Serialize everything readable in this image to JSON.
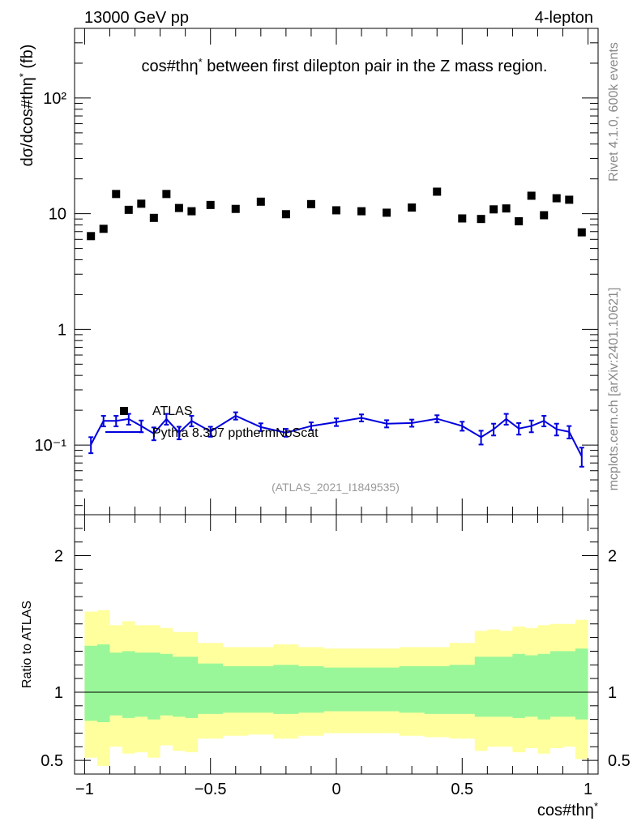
{
  "header": {
    "left_label": "13000 GeV pp",
    "right_label": "4-lepton",
    "plot_title": "cos#thη* between first dilepton pair in the Z mass region.",
    "analysis_id": "(ATLAS_2021_I1849535)"
  },
  "side_labels": {
    "rivet": "Rivet 4.1.0,  600k events",
    "mcplots": "mcplots.cern.ch [arXiv:2401.10621]"
  },
  "chart_data": [
    {
      "type": "scatter",
      "panel": "main",
      "ylabel": "dσ/dcos#thη* (fb)",
      "yscale": "log",
      "ylim": [
        0.025,
        400
      ],
      "xlim": [
        -1.04,
        1.04
      ],
      "ytick_labels": [
        "10⁻¹",
        "1",
        "10",
        "10²"
      ],
      "ytick_values": [
        0.1,
        1,
        10,
        100
      ],
      "legend": {
        "position": "top-left-of-lower-half",
        "entries": [
          "ATLAS",
          "Pythia 8.307 ppthermNoScat"
        ]
      },
      "series": [
        {
          "name": "ATLAS",
          "style": "markers",
          "color": "#000000",
          "x": [
            -0.975,
            -0.925,
            -0.875,
            -0.825,
            -0.775,
            -0.725,
            -0.675,
            -0.625,
            -0.575,
            -0.5,
            -0.4,
            -0.3,
            -0.2,
            -0.1,
            0.0,
            0.1,
            0.2,
            0.3,
            0.4,
            0.5,
            0.575,
            0.625,
            0.675,
            0.725,
            0.775,
            0.825,
            0.875,
            0.925,
            0.975
          ],
          "y": [
            6.4,
            7.4,
            14.8,
            10.8,
            12.2,
            9.2,
            14.8,
            11.2,
            10.5,
            11.9,
            11.0,
            12.7,
            9.9,
            12.1,
            10.7,
            10.5,
            10.2,
            11.3,
            15.5,
            9.1,
            9.0,
            10.9,
            11.1,
            8.6,
            14.3,
            9.7,
            13.6,
            13.2,
            6.9
          ]
        },
        {
          "name": "Pythia 8.307 ppthermNoScat",
          "style": "line",
          "color": "#0000dd",
          "x": [
            -0.975,
            -0.925,
            -0.875,
            -0.825,
            -0.775,
            -0.725,
            -0.675,
            -0.625,
            -0.575,
            -0.5,
            -0.4,
            -0.3,
            -0.2,
            -0.1,
            0.0,
            0.1,
            0.2,
            0.3,
            0.4,
            0.5,
            0.575,
            0.625,
            0.675,
            0.725,
            0.775,
            0.825,
            0.875,
            0.925,
            0.975
          ],
          "y": [
            0.101,
            0.162,
            0.162,
            0.168,
            0.146,
            0.126,
            0.168,
            0.128,
            0.162,
            0.131,
            0.179,
            0.143,
            0.128,
            0.146,
            0.158,
            0.172,
            0.153,
            0.155,
            0.169,
            0.146,
            0.117,
            0.137,
            0.168,
            0.139,
            0.146,
            0.162,
            0.137,
            0.13,
            0.08
          ],
          "yerr": [
            0.016,
            0.017,
            0.017,
            0.018,
            0.017,
            0.016,
            0.018,
            0.016,
            0.017,
            0.013,
            0.013,
            0.011,
            0.01,
            0.011,
            0.012,
            0.012,
            0.011,
            0.011,
            0.012,
            0.013,
            0.016,
            0.016,
            0.018,
            0.016,
            0.017,
            0.017,
            0.016,
            0.016,
            0.015
          ]
        }
      ]
    },
    {
      "type": "area",
      "panel": "ratio",
      "ylabel": "Ratio to ATLAS",
      "xlabel": "cos#thη*",
      "ylim": [
        0.4,
        2.3
      ],
      "xlim": [
        -1.04,
        1.04
      ],
      "ytick_labels": [
        "0.5",
        "1",
        "2"
      ],
      "ytick_values": [
        0.5,
        1,
        2
      ],
      "xtick_labels": [
        "−1",
        "−0.5",
        "0",
        "0.5",
        "1"
      ],
      "xtick_values": [
        -1,
        -0.5,
        0,
        0.5,
        1
      ],
      "reference_line": 1,
      "bins": {
        "edges": [
          -1.0,
          -0.95,
          -0.9,
          -0.85,
          -0.8,
          -0.75,
          -0.7,
          -0.65,
          -0.6,
          -0.55,
          -0.45,
          -0.35,
          -0.25,
          -0.15,
          -0.05,
          0.05,
          0.15,
          0.25,
          0.35,
          0.45,
          0.55,
          0.6,
          0.65,
          0.7,
          0.75,
          0.8,
          0.85,
          0.9,
          0.95,
          1.0
        ],
        "green_low": [
          0.79,
          0.78,
          0.83,
          0.81,
          0.82,
          0.8,
          0.83,
          0.82,
          0.81,
          0.84,
          0.85,
          0.85,
          0.84,
          0.85,
          0.86,
          0.86,
          0.86,
          0.85,
          0.84,
          0.84,
          0.82,
          0.82,
          0.82,
          0.81,
          0.82,
          0.8,
          0.82,
          0.82,
          0.8
        ],
        "green_high": [
          1.34,
          1.35,
          1.29,
          1.3,
          1.29,
          1.29,
          1.28,
          1.26,
          1.26,
          1.21,
          1.19,
          1.19,
          1.2,
          1.19,
          1.18,
          1.18,
          1.18,
          1.19,
          1.19,
          1.2,
          1.26,
          1.26,
          1.26,
          1.28,
          1.27,
          1.28,
          1.3,
          1.3,
          1.32
        ],
        "yellow_low": [
          0.52,
          0.46,
          0.6,
          0.55,
          0.56,
          0.52,
          0.61,
          0.57,
          0.56,
          0.66,
          0.68,
          0.69,
          0.66,
          0.68,
          0.7,
          0.7,
          0.7,
          0.68,
          0.67,
          0.66,
          0.57,
          0.6,
          0.6,
          0.56,
          0.59,
          0.55,
          0.59,
          0.6,
          0.51
        ],
        "yellow_high": [
          1.59,
          1.6,
          1.49,
          1.52,
          1.49,
          1.49,
          1.47,
          1.44,
          1.44,
          1.36,
          1.33,
          1.33,
          1.35,
          1.33,
          1.32,
          1.32,
          1.32,
          1.33,
          1.33,
          1.36,
          1.45,
          1.46,
          1.45,
          1.48,
          1.47,
          1.49,
          1.5,
          1.5,
          1.53
        ]
      },
      "colors": {
        "green": "#99f799",
        "yellow": "#ffff9d"
      }
    }
  ]
}
